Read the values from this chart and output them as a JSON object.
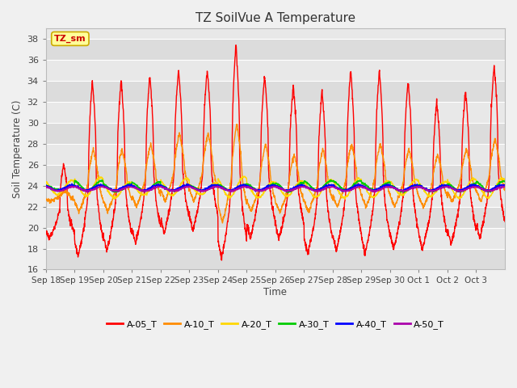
{
  "title": "TZ SoilVue A Temperature",
  "ylabel": "Soil Temperature (C)",
  "xlabel": "Time",
  "ylim": [
    16,
    39
  ],
  "yticks": [
    16,
    18,
    20,
    22,
    24,
    26,
    28,
    30,
    32,
    34,
    36,
    38
  ],
  "xtick_labels": [
    "Sep 18",
    "Sep 19",
    "Sep 20",
    "Sep 21",
    "Sep 22",
    "Sep 23",
    "Sep 24",
    "Sep 25",
    "Sep 26",
    "Sep 27",
    "Sep 28",
    "Sep 29",
    "Sep 30",
    "Oct 1",
    "Oct 2",
    "Oct 3"
  ],
  "series_colors": {
    "A-05_T": "#FF0000",
    "A-10_T": "#FF8C00",
    "A-20_T": "#FFD700",
    "A-30_T": "#00CC00",
    "A-40_T": "#0000FF",
    "A-50_T": "#AA00AA"
  },
  "label_box_text": "TZ_sm",
  "label_box_bg": "#FFFF99",
  "label_box_border": "#CCAA00",
  "fig_bg": "#F0F0F0",
  "plot_bg": "#E8E8E8",
  "band_colors": [
    "#DCDCDC",
    "#E8E8E8"
  ],
  "n_days": 16,
  "n_per_day": 144
}
